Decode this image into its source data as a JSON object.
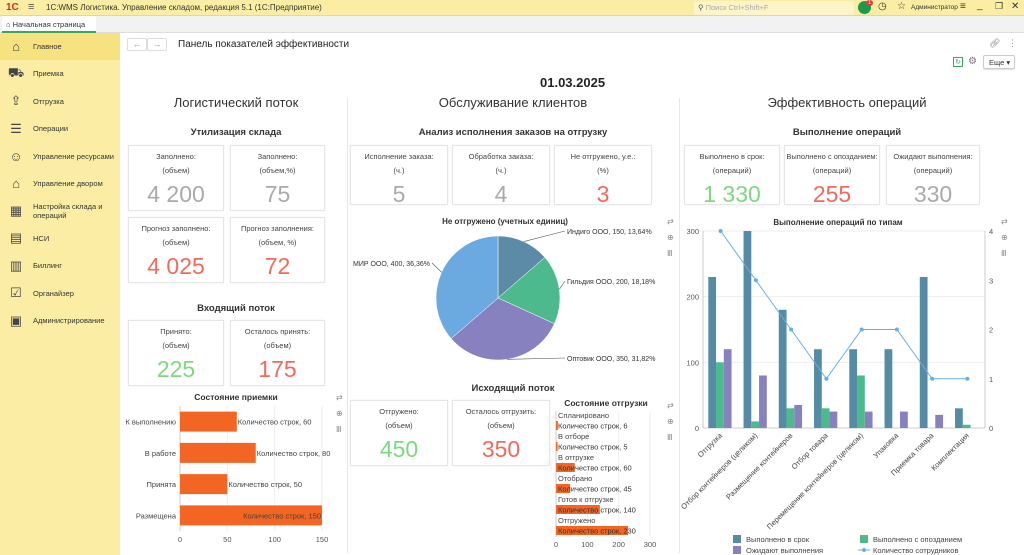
{
  "app": {
    "title": "1С:WMS Логистика. Управление складом, редакция 5.1  (1С:Предприятие)",
    "search_placeholder": "Поиск Ctrl+Shift+F",
    "notifications": "1",
    "user": "Администратор",
    "tab": "Начальная страница"
  },
  "sidebar": {
    "items": [
      {
        "label": "Главное",
        "icon": "home-icon"
      },
      {
        "label": "Приемка",
        "icon": "receiving-icon"
      },
      {
        "label": "Отгрузка",
        "icon": "shipping-icon"
      },
      {
        "label": "Операции",
        "icon": "operations-icon"
      },
      {
        "label": "Управление ресурсами",
        "icon": "resources-icon"
      },
      {
        "label": "Управление двором",
        "icon": "yard-icon"
      },
      {
        "label": "Настройка склада и операций",
        "icon": "warehouse-settings-icon"
      },
      {
        "label": "НСИ",
        "icon": "reference-icon"
      },
      {
        "label": "Биллинг",
        "icon": "billing-icon"
      },
      {
        "label": "Органайзер",
        "icon": "organizer-icon"
      },
      {
        "label": "Администрирование",
        "icon": "admin-icon"
      }
    ]
  },
  "page": {
    "title": "Панель показателей эффективности",
    "more": "Еще",
    "date": "01.03.2025"
  },
  "col1": {
    "title": "Логистический поток",
    "util_title": "Утилизация склада",
    "inflow_title": "Входящий поток",
    "cards": [
      {
        "l1": "Заполнено:",
        "l2": "(объем)",
        "v": "4 200",
        "color": "gray"
      },
      {
        "l1": "Заполнено:",
        "l2": "(объем,%)",
        "v": "75",
        "color": "gray"
      },
      {
        "l1": "Прогноз заполнено:",
        "l2": "(объем)",
        "v": "4 025",
        "color": "red"
      },
      {
        "l1": "Прогноз заполнения:",
        "l2": "(объем, %)",
        "v": "72",
        "color": "red"
      },
      {
        "l1": "Принято:",
        "l2": "(объем)",
        "v": "225",
        "color": "green"
      },
      {
        "l1": "Осталось принять:",
        "l2": "(объем)",
        "v": "175",
        "color": "red"
      }
    ]
  },
  "col2": {
    "title": "Обслуживание клиентов",
    "orders_title": "Анализ исполнения заказов на отгрузку",
    "outflow_title": "Исходящий поток",
    "cards": [
      {
        "l1": "Исполнение заказа:",
        "l2": "(ч.)",
        "v": "5",
        "color": "gray"
      },
      {
        "l1": "Обработка заказа:",
        "l2": "(ч.)",
        "v": "4",
        "color": "gray"
      },
      {
        "l1": "Не отгружено, у.е.:",
        "l2": "(%)",
        "v": "3",
        "color": "red"
      },
      {
        "l1": "Отгружено:",
        "l2": "(объем)",
        "v": "450",
        "color": "green"
      },
      {
        "l1": "Осталось отгрузить:",
        "l2": "(объем)",
        "v": "350",
        "color": "red"
      }
    ]
  },
  "col3": {
    "title": "Эффективность операций",
    "ops_title": "Выполнение операций",
    "cards": [
      {
        "l1": "Выполнено в срок:",
        "l2": "(операций)",
        "v": "1 330",
        "color": "green"
      },
      {
        "l1": "Выполнено с опозданием:",
        "l2": "(операций)",
        "v": "255",
        "color": "red"
      },
      {
        "l1": "Ожидают выполнения:",
        "l2": "(операций)",
        "v": "330",
        "color": "gray"
      }
    ]
  },
  "chart_data": [
    {
      "id": "pie",
      "type": "pie",
      "title": "Не отгружено (учетных единиц)",
      "slices": [
        {
          "label": "Индиго ООО, 150, 13,64%",
          "value": 150,
          "color": "#5b8ba6"
        },
        {
          "label": "Гильдия ООО, 200, 18,18%",
          "value": 200,
          "color": "#4dba8e"
        },
        {
          "label": "Оптовик ООО, 350, 31,82%",
          "value": 350,
          "color": "#8781bf"
        },
        {
          "label": "МИР ООО, 400, 36,36%",
          "value": 400,
          "color": "#6aaae0"
        }
      ]
    },
    {
      "id": "receiving",
      "type": "bar",
      "orientation": "horizontal",
      "title": "Состояние приемки",
      "categories": [
        "К выполнению",
        "В работе",
        "Принята",
        "Размещена"
      ],
      "values": [
        60,
        80,
        50,
        150
      ],
      "series_label": "Количество строк",
      "xlim": [
        0,
        150
      ],
      "ticks": [
        "0",
        "50",
        "100",
        "150"
      ],
      "color": "#f26522"
    },
    {
      "id": "shipping",
      "type": "bar",
      "orientation": "horizontal",
      "title": "Состояние отгрузки",
      "categories": [
        "Спланировано",
        "В отборе",
        "В отгрузке",
        "Отобрано",
        "Готов к отгрузке",
        "Отгружено"
      ],
      "values": [
        6,
        5,
        60,
        45,
        140,
        230
      ],
      "series_label": "Количество строк",
      "xlim": [
        0,
        300
      ],
      "ticks": [
        "0",
        "100",
        "200",
        "300"
      ],
      "color": "#f26522"
    },
    {
      "id": "ops",
      "type": "bar",
      "title": "Выполнение операций по типам",
      "categories": [
        "Отгрузка",
        "Отбор контейнеров (целиком)",
        "Размещение контейнеров",
        "Отбор товара",
        "Перемещение контейнеров (целиком)",
        "Упаковка",
        "Приемка товара",
        "Комплектация"
      ],
      "series": [
        {
          "name": "Выполнено в срок",
          "values": [
            230,
            300,
            180,
            120,
            120,
            120,
            230,
            30
          ],
          "color": "#568ba5"
        },
        {
          "name": "Выполнено с опозданием",
          "values": [
            100,
            10,
            30,
            30,
            80,
            0,
            0,
            5
          ],
          "color": "#4dba8e"
        },
        {
          "name": "Ожидают выполнения",
          "values": [
            120,
            80,
            35,
            25,
            25,
            25,
            20,
            0
          ],
          "color": "#8781bf"
        },
        {
          "name": "Количество сотрудников",
          "type": "line",
          "axis": "right",
          "values": [
            4,
            3,
            2,
            1,
            2,
            2,
            1,
            1
          ],
          "color": "#6aaee6"
        }
      ],
      "ylim": [
        0,
        300
      ],
      "yticks": [
        "0",
        "100",
        "200",
        "300"
      ],
      "y2lim": [
        0,
        4
      ],
      "y2ticks": [
        "0",
        "1",
        "2",
        "3",
        "4"
      ],
      "legend": "bottom"
    }
  ]
}
